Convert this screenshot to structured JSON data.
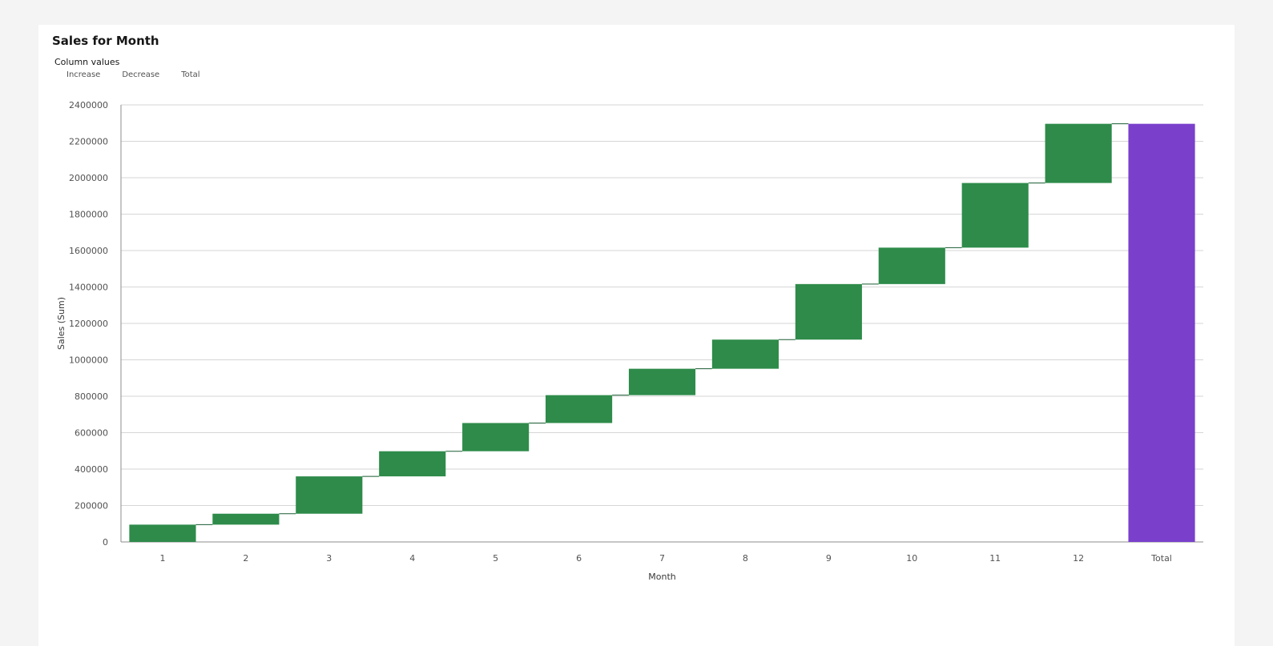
{
  "chart_data": {
    "type": "waterfall",
    "title": "Sales for Month",
    "legend": {
      "title": "Column values",
      "items": [
        "Increase",
        "Decrease",
        "Total"
      ],
      "placement": "top-left"
    },
    "xlabel": "Month",
    "ylabel": "Sales (Sum)",
    "categories": [
      "1",
      "2",
      "3",
      "4",
      "5",
      "6",
      "7",
      "8",
      "9",
      "10",
      "11",
      "12",
      "Total"
    ],
    "values": [
      95000,
      60000,
      205000,
      138000,
      155000,
      153000,
      145000,
      160000,
      305000,
      200000,
      355000,
      325000,
      2296000
    ],
    "cumulative_end": [
      95000,
      155000,
      360000,
      498000,
      653000,
      806000,
      951000,
      1111000,
      1416000,
      1616000,
      1971000,
      2296000,
      2296000
    ],
    "ylim": [
      0,
      2400000
    ],
    "yticks": [
      0,
      200000,
      400000,
      600000,
      800000,
      1000000,
      1200000,
      1400000,
      1600000,
      1800000,
      2000000,
      2200000,
      2400000
    ],
    "grid": true,
    "colors": {
      "increase": "#2e8b4a",
      "decrease": "#da1e28",
      "total": "#7a3fcb",
      "connector": "#1a5c32",
      "grid": "#d6d6d6",
      "axis": "#8d8d8d",
      "tick_label": "#525252"
    }
  }
}
